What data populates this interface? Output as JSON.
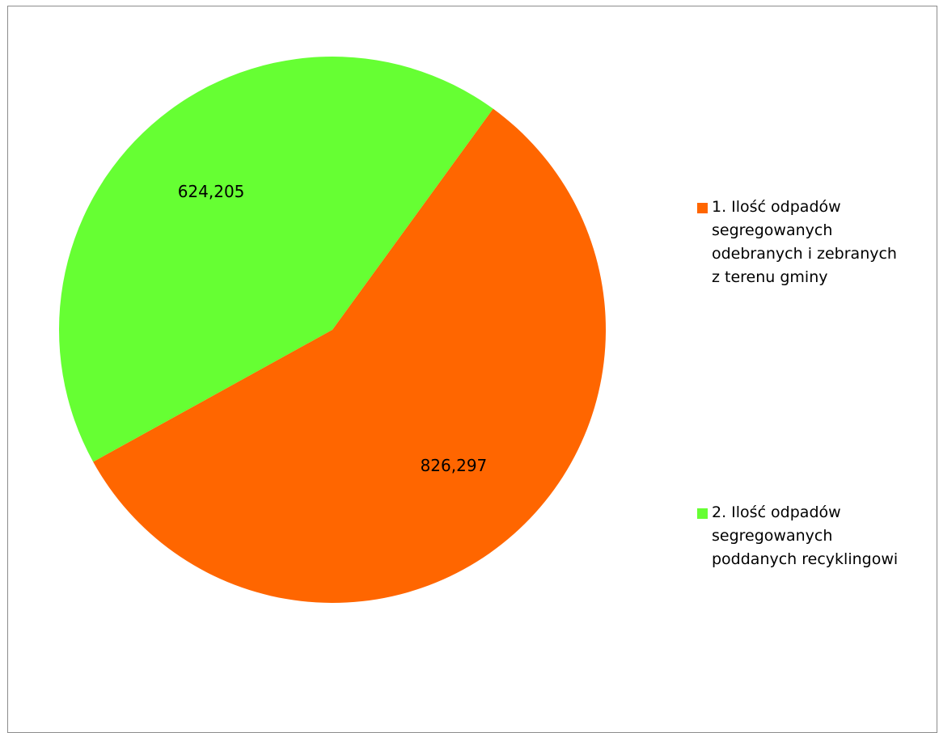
{
  "chart_data": {
    "type": "pie",
    "categories": [
      "1. Ilość odpadów segregowanych odebranych i zebranych z terenu gminy",
      "2. Ilość odpadów segregowanych poddanych recyklingowi"
    ],
    "values": [
      826.297,
      624.205
    ],
    "data_labels": [
      "826,297",
      "624,205"
    ],
    "colors": [
      "#ff6600",
      "#66ff33"
    ],
    "legend_placement": "right"
  },
  "legend": {
    "items": [
      {
        "lines": [
          "1. Ilość odpadów",
          "segregowanych",
          "odebranych i zebranych",
          "z terenu gminy"
        ]
      },
      {
        "lines": [
          "2. Ilość odpadów",
          "segregowanych",
          "poddanych recyklingowi"
        ]
      }
    ]
  }
}
